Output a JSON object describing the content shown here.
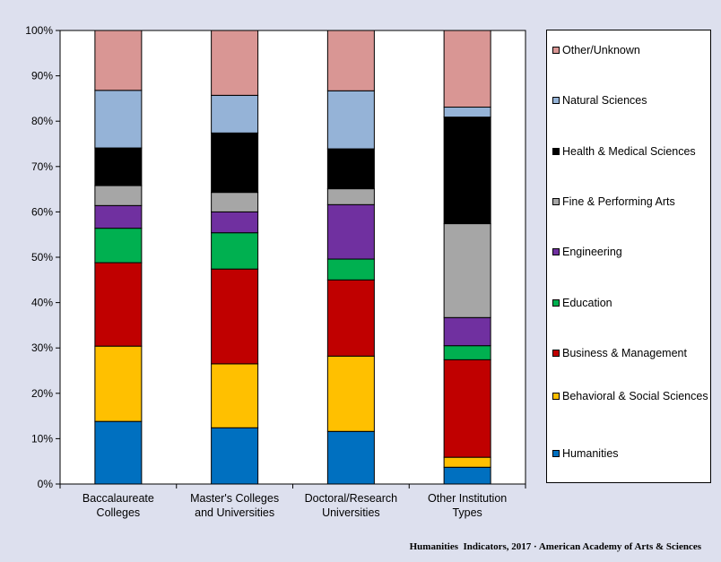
{
  "chart_data": {
    "type": "bar",
    "stacked": true,
    "percent_axis": true,
    "categories": [
      [
        "Baccalaureate",
        "Colleges"
      ],
      [
        "Master's Colleges",
        "and Universities"
      ],
      [
        "Doctoral/Research",
        "Universities"
      ],
      [
        "Other Institution",
        "Types"
      ]
    ],
    "yticks": [
      "0%",
      "10%",
      "20%",
      "30%",
      "40%",
      "50%",
      "60%",
      "70%",
      "80%",
      "90%",
      "100%"
    ],
    "ylim": [
      0,
      100
    ],
    "grid": false,
    "legend_position": "right",
    "series": [
      {
        "name": "Humanities",
        "color": "#0070c0",
        "values": [
          13.8,
          12.4,
          11.6,
          3.7
        ]
      },
      {
        "name": "Behavioral & Social Sciences",
        "color": "#ffc000",
        "values": [
          16.6,
          14.1,
          16.6,
          2.2
        ]
      },
      {
        "name": "Business & Management",
        "color": "#c00000",
        "values": [
          18.4,
          20.9,
          16.8,
          21.5
        ]
      },
      {
        "name": "Education",
        "color": "#00b050",
        "values": [
          7.6,
          8.0,
          4.6,
          3.1
        ]
      },
      {
        "name": "Engineering",
        "color": "#7030a0",
        "values": [
          5.0,
          4.6,
          12.0,
          6.2
        ]
      },
      {
        "name": "Fine & Performing Arts",
        "color": "#a6a6a6",
        "values": [
          4.4,
          4.3,
          3.5,
          20.7
        ]
      },
      {
        "name": "Health & Medical Sciences",
        "color": "#000000",
        "values": [
          8.3,
          13.1,
          8.8,
          23.5
        ]
      },
      {
        "name": "Natural Sciences",
        "color": "#95b3d7",
        "values": [
          12.7,
          8.3,
          12.8,
          2.2
        ]
      },
      {
        "name": "Other/Unknown",
        "color": "#d99694",
        "values": [
          13.2,
          14.3,
          13.3,
          16.9
        ]
      }
    ]
  },
  "footer": "Humanities  Indicators, 2017 · American Academy of Arts & Sciences"
}
